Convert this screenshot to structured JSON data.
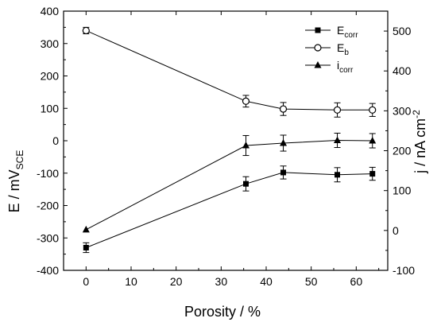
{
  "chart_data": {
    "type": "scatter",
    "xlabel": "Porosity / %",
    "ylabel_left": {
      "main": "E / mV",
      "sub": "SCE"
    },
    "ylabel_right": {
      "main": "j / nA cm",
      "sup": "-2"
    },
    "xlim": [
      -5,
      67
    ],
    "ylim_left": [
      -400,
      400
    ],
    "ylim_right": [
      -100,
      550
    ],
    "x_ticks": [
      "0",
      "10",
      "20",
      "30",
      "40",
      "50",
      "60"
    ],
    "y_left_ticks": [
      "-400",
      "-300",
      "-200",
      "-100",
      "0",
      "100",
      "200",
      "300",
      "400"
    ],
    "y_right_ticks": [
      "-100",
      "0",
      "100",
      "200",
      "300",
      "400",
      "500"
    ],
    "legend_position": "top-right",
    "grid": false,
    "series": [
      {
        "name": "E",
        "name_sub": "corr",
        "axis": "left",
        "marker": "filled-square",
        "points": [
          {
            "x": 0,
            "y": -330,
            "err": 15
          },
          {
            "x": 35.5,
            "y": -133,
            "err": 22
          },
          {
            "x": 43.8,
            "y": -98,
            "err": 20
          },
          {
            "x": 55.8,
            "y": -105,
            "err": 22
          },
          {
            "x": 63.6,
            "y": -102,
            "err": 20
          }
        ]
      },
      {
        "name": "E",
        "name_sub": "b",
        "axis": "left",
        "marker": "open-circle",
        "points": [
          {
            "x": 0,
            "y": 340,
            "err": 10
          },
          {
            "x": 35.5,
            "y": 122,
            "err": 18
          },
          {
            "x": 43.8,
            "y": 98,
            "err": 20
          },
          {
            "x": 55.8,
            "y": 95,
            "err": 22
          },
          {
            "x": 63.6,
            "y": 95,
            "err": 20
          }
        ]
      },
      {
        "name": "i",
        "name_sub": "corr",
        "axis": "right",
        "marker": "filled-triangle",
        "points": [
          {
            "x": 0,
            "y": 2,
            "err": 0
          },
          {
            "x": 35.5,
            "y": 213,
            "err": 25
          },
          {
            "x": 43.8,
            "y": 219,
            "err": 20
          },
          {
            "x": 55.8,
            "y": 226,
            "err": 18
          },
          {
            "x": 63.6,
            "y": 225,
            "err": 18
          }
        ]
      }
    ]
  }
}
